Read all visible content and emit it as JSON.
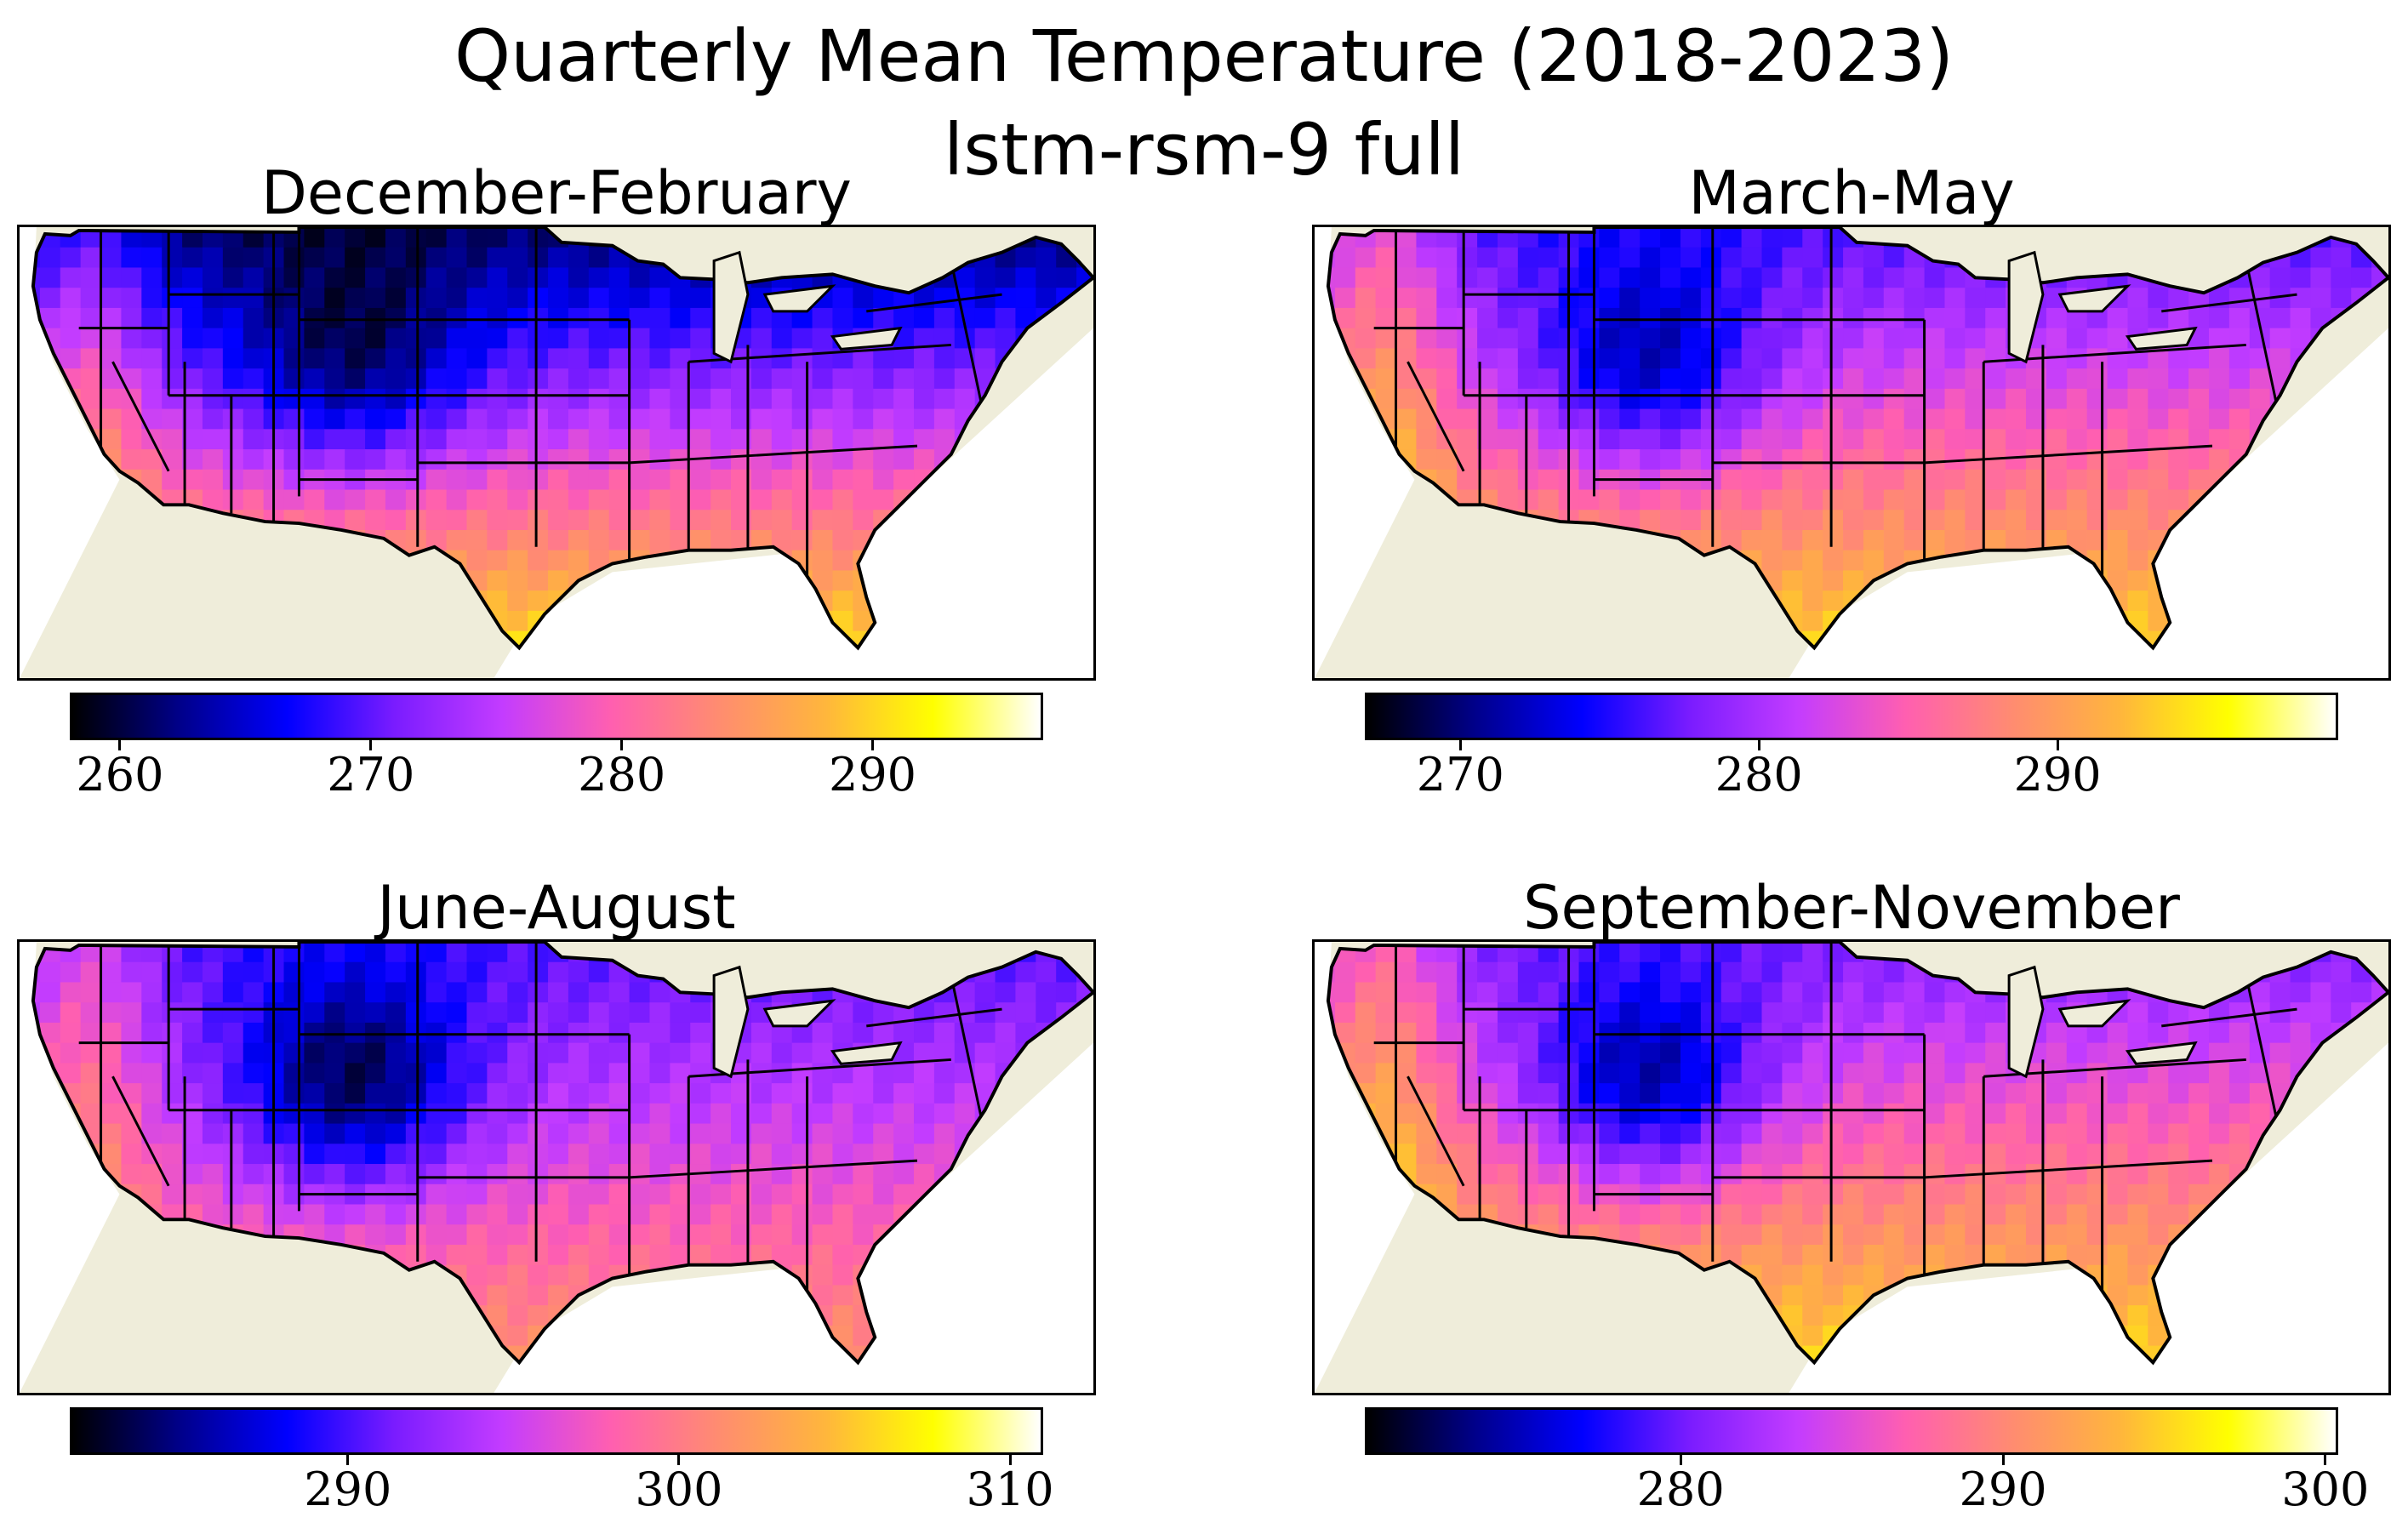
{
  "title_line1": "Quarterly Mean Temperature (2018-2023)",
  "title_line2": "lstm-rsm-9 full",
  "colormap": "gnuplot2",
  "colors": {
    "land_background": "#efedda",
    "ocean": "#ffffff",
    "cmap_stops": [
      "#000000",
      "#00008a",
      "#0000ff",
      "#7a1cff",
      "#c33cff",
      "#ff5fb0",
      "#ff8c70",
      "#ffb63c",
      "#ffff00",
      "#ffffff"
    ]
  },
  "panels": [
    {
      "id": "djf",
      "title": "December-February",
      "colorbar": {
        "min": 258.0,
        "max": 296.8,
        "ticks": [
          260,
          270,
          280,
          290
        ],
        "tick_labels": [
          "260",
          "270",
          "280",
          "290"
        ]
      }
    },
    {
      "id": "mam",
      "title": "March-May",
      "colorbar": {
        "min": 266.8,
        "max": 299.4,
        "ticks": [
          270,
          280,
          290
        ],
        "tick_labels": [
          "270",
          "280",
          "290"
        ]
      }
    },
    {
      "id": "jja",
      "title": "June-August",
      "colorbar": {
        "min": 281.6,
        "max": 311.0,
        "ticks": [
          290,
          300,
          310
        ],
        "tick_labels": [
          "290",
          "300",
          "310"
        ]
      }
    },
    {
      "id": "son",
      "title": "September-November",
      "colorbar": {
        "min": 270.2,
        "max": 300.4,
        "ticks": [
          280,
          290,
          300
        ],
        "tick_labels": [
          "280",
          "290",
          "300"
        ]
      }
    }
  ]
}
